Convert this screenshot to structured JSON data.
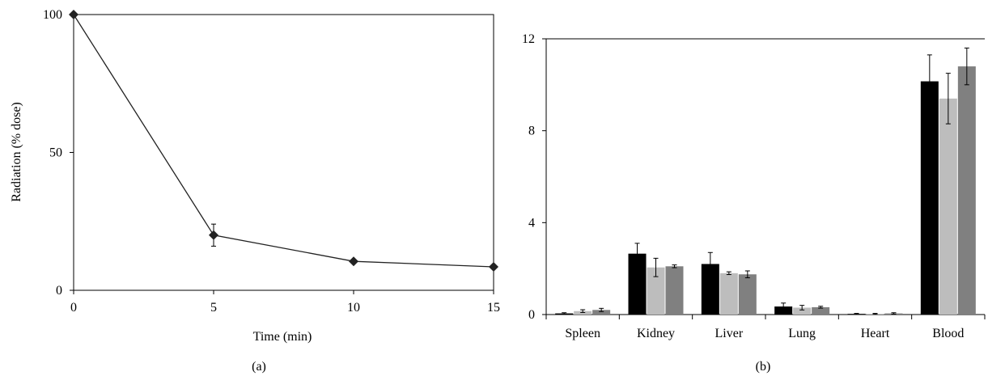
{
  "chart_data": [
    {
      "type": "line",
      "panel_label": "(a)",
      "xlabel": "Time (min)",
      "ylabel": "Radiation (% dose)",
      "x": [
        0,
        5,
        10,
        15
      ],
      "x_ticks": [
        "0",
        "5",
        "10",
        "15"
      ],
      "y_ticks": [
        "0",
        "50",
        "100"
      ],
      "xlim": [
        0,
        15
      ],
      "ylim": [
        0,
        100
      ],
      "series": [
        {
          "values": [
            100,
            20,
            10.5,
            8.5
          ],
          "errors": [
            0,
            4,
            0,
            0
          ],
          "marker": "diamond",
          "color": "#222222"
        }
      ],
      "grid": false,
      "frame": "box"
    },
    {
      "type": "bar",
      "panel_label": "(b)",
      "categories": [
        "Spleen",
        "Kidney",
        "Liver",
        "Lung",
        "Heart",
        "Blood"
      ],
      "y_ticks": [
        "0",
        "4",
        "8",
        "12"
      ],
      "ylim": [
        0,
        12
      ],
      "series": [
        {
          "color": "#000000",
          "values": [
            0.05,
            2.65,
            2.2,
            0.35,
            0.03,
            10.15
          ],
          "errors": [
            0.03,
            0.45,
            0.5,
            0.15,
            0.02,
            1.15
          ]
        },
        {
          "color": "#bdbdbd",
          "values": [
            0.15,
            2.05,
            1.8,
            0.3,
            0.03,
            9.4
          ],
          "errors": [
            0.06,
            0.4,
            0.06,
            0.1,
            0.02,
            1.1
          ]
        },
        {
          "color": "#808080",
          "values": [
            0.2,
            2.1,
            1.75,
            0.32,
            0.05,
            10.8
          ],
          "errors": [
            0.07,
            0.06,
            0.15,
            0.04,
            0.03,
            0.8
          ]
        }
      ],
      "grid": false,
      "legend": "none"
    }
  ]
}
